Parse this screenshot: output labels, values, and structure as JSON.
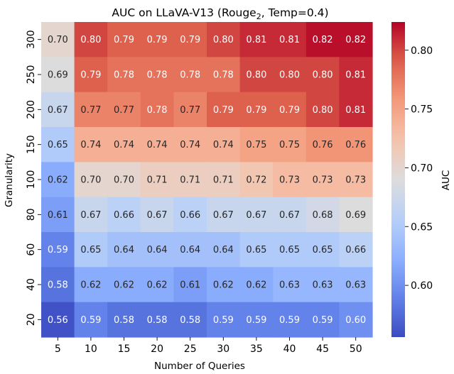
{
  "chart_data": {
    "type": "heatmap",
    "title": "AUC on LLaVA-V13 (Rouge",
    "title_subscript": "2",
    "title_suffix": ", Temp=0.4)",
    "xlabel": "Number of Queries",
    "ylabel": "Granularity",
    "colorbar_label": "AUC",
    "colormap": "coolwarm",
    "x": [
      "5",
      "10",
      "15",
      "20",
      "25",
      "30",
      "35",
      "40",
      "45",
      "50"
    ],
    "y": [
      "300",
      "250",
      "200",
      "150",
      "100",
      "80",
      "60",
      "40",
      "20"
    ],
    "values": [
      [
        0.7,
        0.8,
        0.79,
        0.79,
        0.79,
        0.8,
        0.81,
        0.81,
        0.82,
        0.82
      ],
      [
        0.69,
        0.79,
        0.78,
        0.78,
        0.78,
        0.78,
        0.8,
        0.8,
        0.8,
        0.81
      ],
      [
        0.67,
        0.77,
        0.77,
        0.78,
        0.77,
        0.79,
        0.79,
        0.79,
        0.8,
        0.81
      ],
      [
        0.65,
        0.74,
        0.74,
        0.74,
        0.74,
        0.74,
        0.75,
        0.75,
        0.76,
        0.76
      ],
      [
        0.62,
        0.7,
        0.7,
        0.71,
        0.71,
        0.71,
        0.72,
        0.73,
        0.73,
        0.73
      ],
      [
        0.61,
        0.67,
        0.66,
        0.67,
        0.66,
        0.67,
        0.67,
        0.67,
        0.68,
        0.69
      ],
      [
        0.59,
        0.65,
        0.64,
        0.64,
        0.64,
        0.64,
        0.65,
        0.65,
        0.65,
        0.66
      ],
      [
        0.58,
        0.62,
        0.62,
        0.62,
        0.61,
        0.62,
        0.62,
        0.63,
        0.63,
        0.63
      ],
      [
        0.56,
        0.59,
        0.58,
        0.58,
        0.58,
        0.59,
        0.59,
        0.59,
        0.59,
        0.6
      ]
    ],
    "display_values": [
      [
        "0.70",
        "0.80",
        "0.79",
        "0.79",
        "0.79",
        "0.80",
        "0.81",
        "0.81",
        "0.82",
        "0.82"
      ],
      [
        "0.69",
        "0.79",
        "0.78",
        "0.78",
        "0.78",
        "0.78",
        "0.80",
        "0.80",
        "0.80",
        "0.81"
      ],
      [
        "0.67",
        "0.77",
        "0.77",
        "0.78",
        "0.77",
        "0.79",
        "0.79",
        "0.79",
        "0.80",
        "0.81"
      ],
      [
        "0.65",
        "0.74",
        "0.74",
        "0.74",
        "0.74",
        "0.74",
        "0.75",
        "0.75",
        "0.76",
        "0.76"
      ],
      [
        "0.62",
        "0.70",
        "0.70",
        "0.71",
        "0.71",
        "0.71",
        "0.72",
        "0.73",
        "0.73",
        "0.73"
      ],
      [
        "0.61",
        "0.67",
        "0.66",
        "0.67",
        "0.66",
        "0.67",
        "0.67",
        "0.67",
        "0.68",
        "0.69"
      ],
      [
        "0.59",
        "0.65",
        "0.64",
        "0.64",
        "0.64",
        "0.64",
        "0.65",
        "0.65",
        "0.65",
        "0.66"
      ],
      [
        "0.58",
        "0.62",
        "0.62",
        "0.62",
        "0.61",
        "0.62",
        "0.62",
        "0.63",
        "0.63",
        "0.63"
      ],
      [
        "0.56",
        "0.59",
        "0.58",
        "0.58",
        "0.58",
        "0.59",
        "0.59",
        "0.59",
        "0.59",
        "0.60"
      ]
    ],
    "vmin": 0.556,
    "vmax": 0.824,
    "colorbar_ticks": [
      "0.60",
      "0.65",
      "0.70",
      "0.75",
      "0.80"
    ],
    "grid": false
  }
}
